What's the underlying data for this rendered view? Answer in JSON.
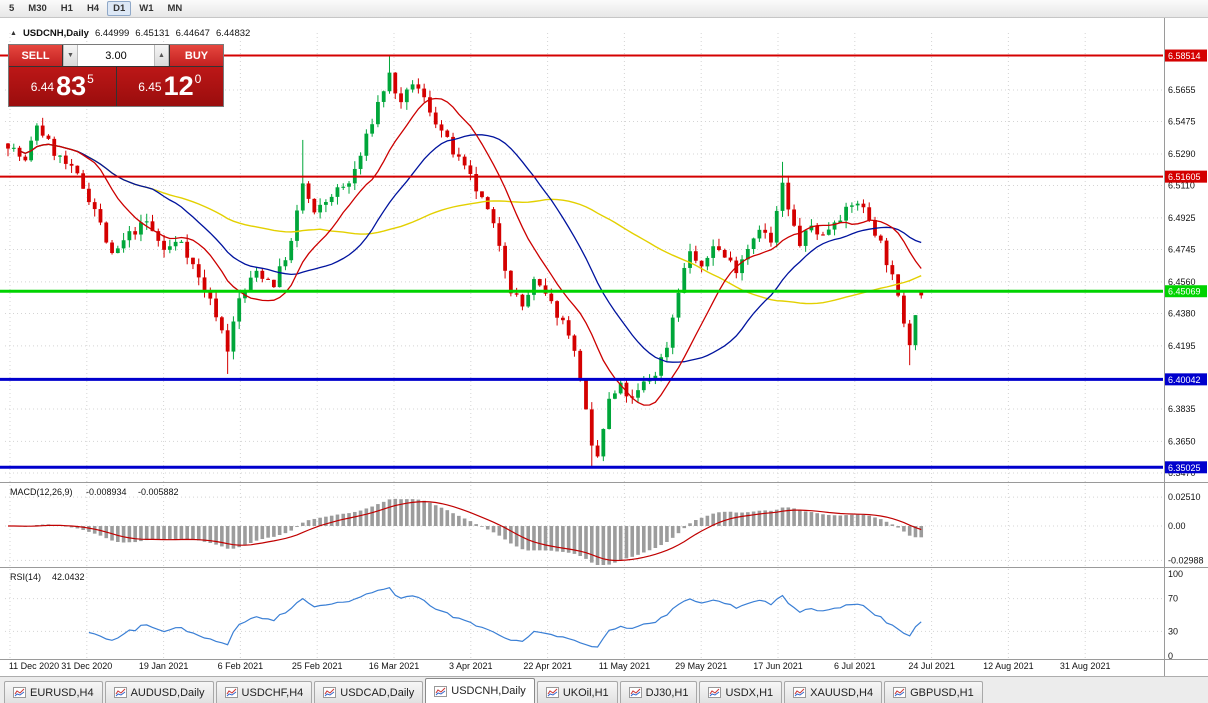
{
  "toolbar": {
    "timeframes": [
      {
        "label": "5",
        "active": false
      },
      {
        "label": "M30",
        "active": false
      },
      {
        "label": "H1",
        "active": false
      },
      {
        "label": "H4",
        "active": false
      },
      {
        "label": "D1",
        "active": true
      },
      {
        "label": "W1",
        "active": false
      },
      {
        "label": "MN",
        "active": false
      }
    ]
  },
  "symbol_info": {
    "collapse_icon": "▲",
    "symbol": "USDCNH,Daily",
    "open": "6.44999",
    "high": "6.45131",
    "low": "6.44647",
    "close": "6.44832"
  },
  "trade_widget": {
    "sell_label": "SELL",
    "buy_label": "BUY",
    "lot_size": "3.00",
    "spinner_down_icon": "▼",
    "spinner_up_icon": "▲",
    "sell_price": {
      "big": "6.44",
      "large": "83",
      "sup": "5"
    },
    "buy_price": {
      "big": "6.45",
      "large": "12",
      "sup": "0"
    }
  },
  "chart_data": {
    "type": "candlestick",
    "symbol": "USDCNH",
    "timeframe": "Daily",
    "current_bar": {
      "open": 6.44999,
      "high": 6.45131,
      "low": 6.44647,
      "close": 6.44832
    },
    "bar_count": 159,
    "x_range": [
      "11 Dec 2020",
      "31 Aug 2021"
    ],
    "ylim": [
      6.343,
      6.598
    ],
    "y_axis_ticks": [
      6.5655,
      6.5475,
      6.529,
      6.511,
      6.4925,
      6.4745,
      6.456,
      6.438,
      6.4195,
      6.3835,
      6.365,
      6.347
    ],
    "price_anchors": [
      [
        0,
        6.535
      ],
      [
        3,
        6.524
      ],
      [
        5,
        6.546
      ],
      [
        8,
        6.53
      ],
      [
        12,
        6.516
      ],
      [
        15,
        6.498
      ],
      [
        18,
        6.47
      ],
      [
        21,
        6.483
      ],
      [
        24,
        6.49
      ],
      [
        27,
        6.474
      ],
      [
        30,
        6.48
      ],
      [
        33,
        6.458
      ],
      [
        36,
        6.438
      ],
      [
        38,
        6.418
      ],
      [
        40,
        6.446
      ],
      [
        43,
        6.462
      ],
      [
        46,
        6.455
      ],
      [
        49,
        6.478
      ],
      [
        51,
        6.512
      ],
      [
        53,
        6.494
      ],
      [
        56,
        6.506
      ],
      [
        59,
        6.512
      ],
      [
        61,
        6.528
      ],
      [
        64,
        6.558
      ],
      [
        66,
        6.574
      ],
      [
        68,
        6.556
      ],
      [
        70,
        6.57
      ],
      [
        72,
        6.56
      ],
      [
        74,
        6.548
      ],
      [
        77,
        6.53
      ],
      [
        80,
        6.515
      ],
      [
        83,
        6.496
      ],
      [
        85,
        6.478
      ],
      [
        87,
        6.452
      ],
      [
        89,
        6.442
      ],
      [
        91,
        6.456
      ],
      [
        93,
        6.448
      ],
      [
        95,
        6.438
      ],
      [
        97,
        6.428
      ],
      [
        99,
        6.402
      ],
      [
        101,
        6.36
      ],
      [
        102,
        6.356
      ],
      [
        104,
        6.388
      ],
      [
        106,
        6.396
      ],
      [
        108,
        6.388
      ],
      [
        110,
        6.398
      ],
      [
        112,
        6.404
      ],
      [
        114,
        6.42
      ],
      [
        116,
        6.452
      ],
      [
        118,
        6.474
      ],
      [
        120,
        6.462
      ],
      [
        122,
        6.478
      ],
      [
        124,
        6.47
      ],
      [
        126,
        6.464
      ],
      [
        128,
        6.476
      ],
      [
        130,
        6.488
      ],
      [
        132,
        6.478
      ],
      [
        134,
        6.512
      ],
      [
        135,
        6.496
      ],
      [
        137,
        6.478
      ],
      [
        139,
        6.488
      ],
      [
        141,
        6.482
      ],
      [
        143,
        6.492
      ],
      [
        145,
        6.496
      ],
      [
        147,
        6.502
      ],
      [
        149,
        6.492
      ],
      [
        151,
        6.478
      ],
      [
        153,
        6.458
      ],
      [
        155,
        6.434
      ],
      [
        156,
        6.422
      ],
      [
        157,
        6.44
      ],
      [
        158,
        6.448
      ]
    ],
    "extremes": [
      {
        "i": 38,
        "low": 6.4035
      },
      {
        "i": 51,
        "high": 6.537
      },
      {
        "i": 66,
        "high": 6.5851
      },
      {
        "i": 101,
        "low": 6.3505
      },
      {
        "i": 134,
        "high": 6.5245
      },
      {
        "i": 156,
        "low": 6.4085
      }
    ]
  },
  "price_axis": {
    "ticks": [
      "6.5655",
      "6.5475",
      "6.5290",
      "6.5110",
      "6.4925",
      "6.4745",
      "6.4560",
      "6.4380",
      "6.4195",
      "6.3835",
      "6.3650",
      "6.3470"
    ]
  },
  "hlines": [
    {
      "label": "6.58514",
      "price": 6.58514,
      "color": "#d40000",
      "width": 2
    },
    {
      "label": "6.51605",
      "price": 6.51605,
      "color": "#d40000",
      "width": 2
    },
    {
      "label": "6.45069",
      "price": 6.45069,
      "color": "#00d300",
      "width": 3
    },
    {
      "label": "6.40042",
      "price": 6.40042,
      "color": "#0000cd",
      "width": 3
    },
    {
      "label": "6.35025",
      "price": 6.35025,
      "color": "#0000cd",
      "width": 3
    }
  ],
  "macd": {
    "name": "MACD(12,26,9)",
    "value_main": "-0.008934",
    "value_signal": "-0.005882",
    "axis": [
      "0.02510",
      "0.00",
      "-0.02988"
    ],
    "colors": {
      "histogram": "#9c9c9c",
      "signal": "#c00000"
    }
  },
  "rsi": {
    "name": "RSI(14)",
    "value": "42.0432",
    "axis": [
      "100",
      "70",
      "30",
      "0"
    ],
    "levels": [
      70,
      30
    ],
    "color": "#3a7fd5"
  },
  "x_axis": {
    "dates": [
      "11 Dec 2020",
      "31 Dec 2020",
      "19 Jan 2021",
      "6 Feb 2021",
      "25 Feb 2021",
      "16 Mar 2021",
      "3 Apr 2021",
      "22 Apr 2021",
      "11 May 2021",
      "29 May 2021",
      "17 Jun 2021",
      "6 Jul 2021",
      "24 Jul 2021",
      "12 Aug 2021",
      "31 Aug 2021"
    ]
  },
  "tabs": [
    {
      "label": "EURUSD,H4",
      "active": false
    },
    {
      "label": "AUDUSD,Daily",
      "active": false
    },
    {
      "label": "USDCHF,H4",
      "active": false
    },
    {
      "label": "USDCAD,Daily",
      "active": false
    },
    {
      "label": "USDCNH,Daily",
      "active": true
    },
    {
      "label": "UKOil,H1",
      "active": false
    },
    {
      "label": "DJ30,H1",
      "active": false
    },
    {
      "label": "USDX,H1",
      "active": false
    },
    {
      "label": "XAUUSD,H4",
      "active": false
    },
    {
      "label": "GBPUSD,H1",
      "active": false
    }
  ],
  "colors": {
    "bull": "#00a63a",
    "bear": "#d40000",
    "ma_red": "#cc0000",
    "ma_blue": "#00139e",
    "ma_yellow": "#e3d000",
    "grid": "#d4d4d4",
    "panel_border": "#9a9a9a"
  }
}
